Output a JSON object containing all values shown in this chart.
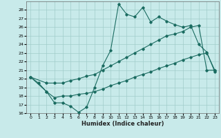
{
  "xlabel": "Humidex (Indice chaleur)",
  "background_color": "#c8eaea",
  "grid_color": "#a0ccca",
  "line_color": "#1a6b60",
  "xlim": [
    -0.5,
    23.5
  ],
  "ylim": [
    16,
    29
  ],
  "yticks": [
    16,
    17,
    18,
    19,
    20,
    21,
    22,
    23,
    24,
    25,
    26,
    27,
    28
  ],
  "xticks": [
    0,
    1,
    2,
    3,
    4,
    5,
    6,
    7,
    8,
    9,
    10,
    11,
    12,
    13,
    14,
    15,
    16,
    17,
    18,
    19,
    20,
    21,
    22,
    23
  ],
  "series1_x": [
    0,
    1,
    2,
    3,
    4,
    5,
    6,
    7,
    8,
    9,
    10,
    11,
    12,
    13,
    14,
    15,
    16,
    17,
    18,
    19,
    20,
    21,
    22,
    23
  ],
  "series1_y": [
    20.2,
    19.5,
    18.5,
    17.2,
    17.2,
    16.8,
    16.1,
    16.7,
    19.0,
    21.5,
    23.3,
    28.7,
    27.5,
    27.2,
    28.3,
    26.6,
    27.2,
    26.7,
    26.3,
    26.0,
    26.2,
    24.0,
    23.1,
    20.8
  ],
  "series2_x": [
    0,
    2,
    3,
    4,
    5,
    6,
    7,
    8,
    9,
    10,
    11,
    12,
    13,
    14,
    15,
    16,
    17,
    18,
    19,
    20,
    21,
    22,
    23
  ],
  "series2_y": [
    20.2,
    19.5,
    19.5,
    19.5,
    19.8,
    20.0,
    20.3,
    20.5,
    21.0,
    21.5,
    22.0,
    22.5,
    23.0,
    23.5,
    24.0,
    24.5,
    25.0,
    25.2,
    25.5,
    26.0,
    26.2,
    21.0,
    21.0
  ],
  "series3_x": [
    0,
    2,
    3,
    4,
    5,
    6,
    7,
    8,
    9,
    10,
    11,
    12,
    13,
    14,
    15,
    16,
    17,
    18,
    19,
    20,
    21,
    22,
    23
  ],
  "series3_y": [
    20.2,
    18.5,
    17.8,
    18.0,
    18.0,
    18.2,
    18.3,
    18.5,
    18.8,
    19.2,
    19.5,
    19.8,
    20.2,
    20.5,
    20.8,
    21.2,
    21.5,
    21.8,
    22.2,
    22.5,
    22.8,
    23.0,
    21.0
  ]
}
